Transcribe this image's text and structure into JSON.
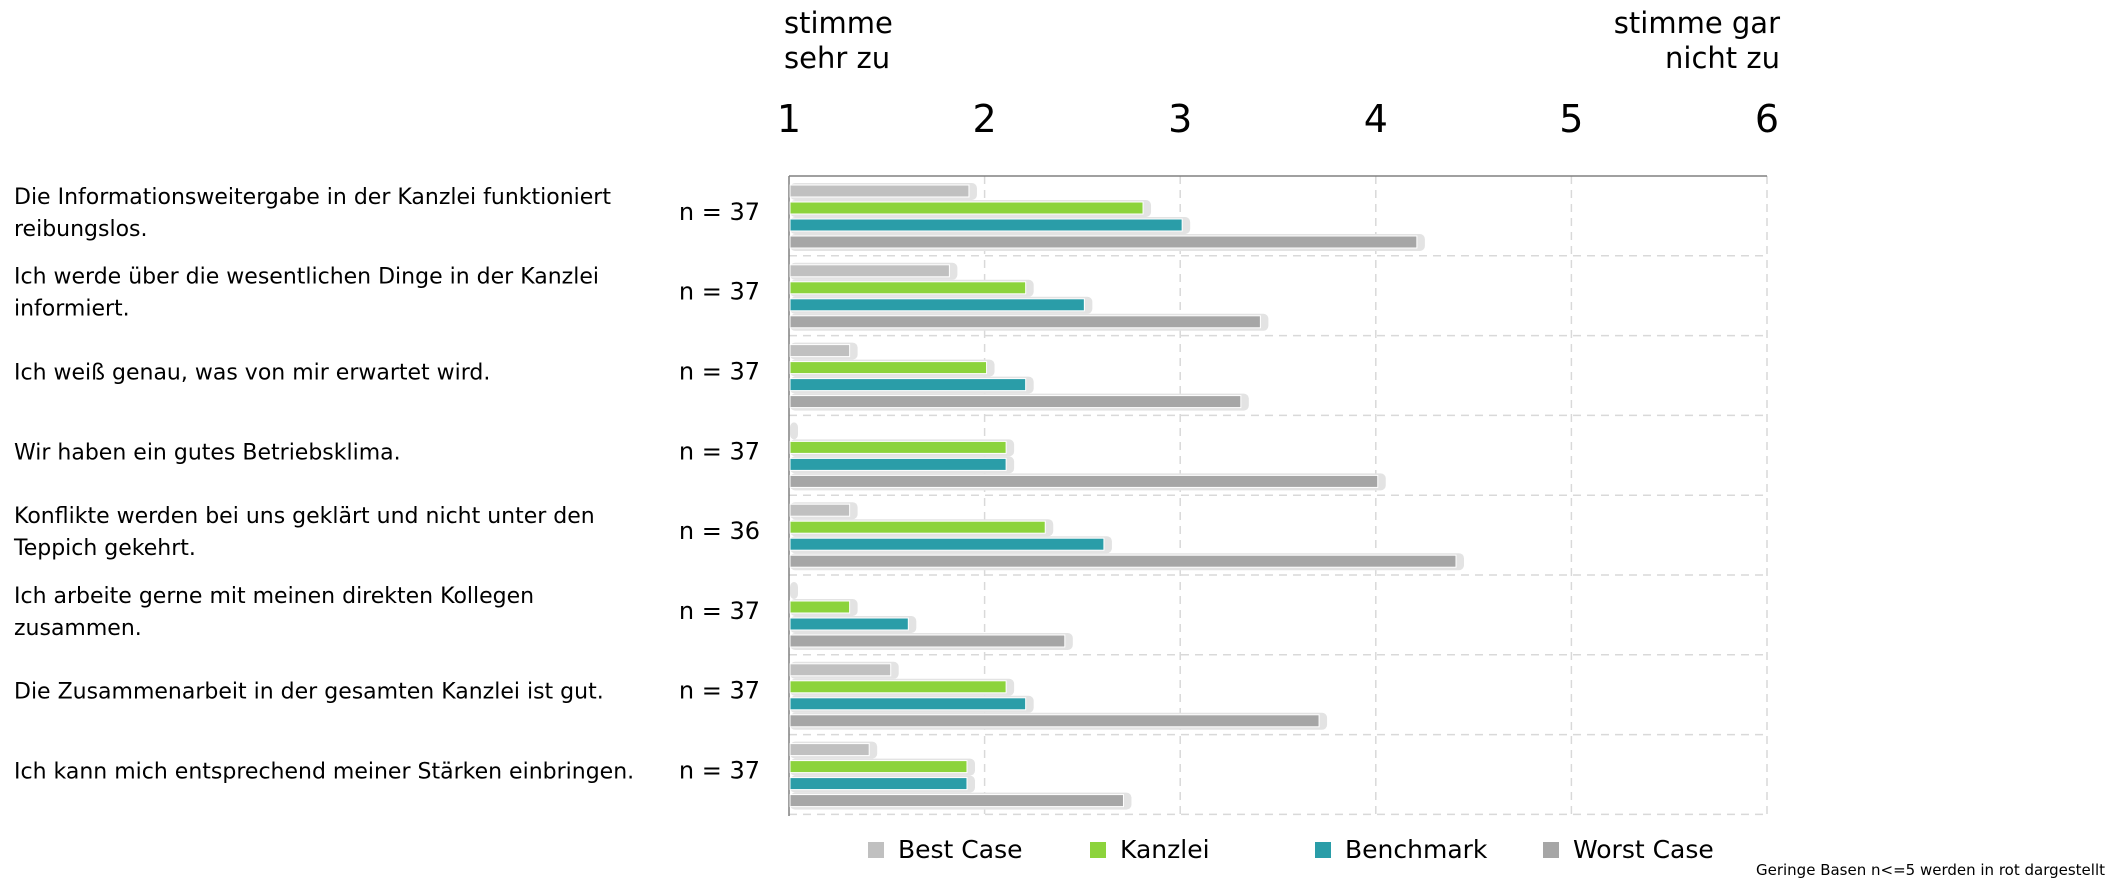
{
  "scale_labels": {
    "left_line1": "stimme",
    "left_line2": "sehr zu",
    "right_line1": "stimme gar",
    "right_line2": "nicht zu"
  },
  "footnote": "Geringe Basen n<=5 werden in rot dargestellt",
  "colors": {
    "best_case": "#c0c0c0",
    "kanzlei": "#8cd33c",
    "benchmark": "#2a9da8",
    "worst_case": "#a6a6a6",
    "grid": "#d9d9d9",
    "axis": "#808080"
  },
  "chart_data": {
    "type": "bar",
    "orientation": "horizontal",
    "xlim": [
      1,
      6
    ],
    "x_ticks": [
      "1",
      "2",
      "3",
      "4",
      "5",
      "6"
    ],
    "grid": true,
    "legend_position": "bottom",
    "categories": [
      {
        "lines": [
          "Die Informationsweitergabe in der Kanzlei funktioniert",
          "reibungslos."
        ],
        "n": "n = 37"
      },
      {
        "lines": [
          "Ich werde über die wesentlichen Dinge in der Kanzlei",
          "informiert."
        ],
        "n": "n = 37"
      },
      {
        "lines": [
          "Ich weiß genau, was von mir erwartet wird."
        ],
        "n": "n = 37"
      },
      {
        "lines": [
          "Wir haben ein gutes Betriebsklima."
        ],
        "n": "n = 37"
      },
      {
        "lines": [
          "Konflikte werden bei uns geklärt und nicht unter den",
          "Teppich gekehrt."
        ],
        "n": "n = 36"
      },
      {
        "lines": [
          "Ich arbeite gerne mit meinen direkten Kollegen",
          "zusammen."
        ],
        "n": "n = 37"
      },
      {
        "lines": [
          "Die Zusammenarbeit in der gesamten Kanzlei ist gut."
        ],
        "n": "n = 37"
      },
      {
        "lines": [
          "Ich kann mich entsprechend meiner Stärken einbringen."
        ],
        "n": "n = 37"
      }
    ],
    "series": [
      {
        "name": "Best Case",
        "color_key": "best_case",
        "values": [
          1.92,
          1.82,
          1.31,
          1.0,
          1.31,
          1.0,
          1.52,
          1.41
        ]
      },
      {
        "name": "Kanzlei",
        "color_key": "kanzlei",
        "values": [
          2.81,
          2.21,
          2.01,
          2.11,
          2.31,
          1.31,
          2.11,
          1.91
        ]
      },
      {
        "name": "Benchmark",
        "color_key": "benchmark",
        "values": [
          3.01,
          2.51,
          2.21,
          2.11,
          2.61,
          1.61,
          2.21,
          1.91
        ]
      },
      {
        "name": "Worst Case",
        "color_key": "worst_case",
        "values": [
          4.21,
          3.41,
          3.31,
          4.01,
          4.41,
          2.41,
          3.71,
          2.71
        ]
      }
    ]
  }
}
